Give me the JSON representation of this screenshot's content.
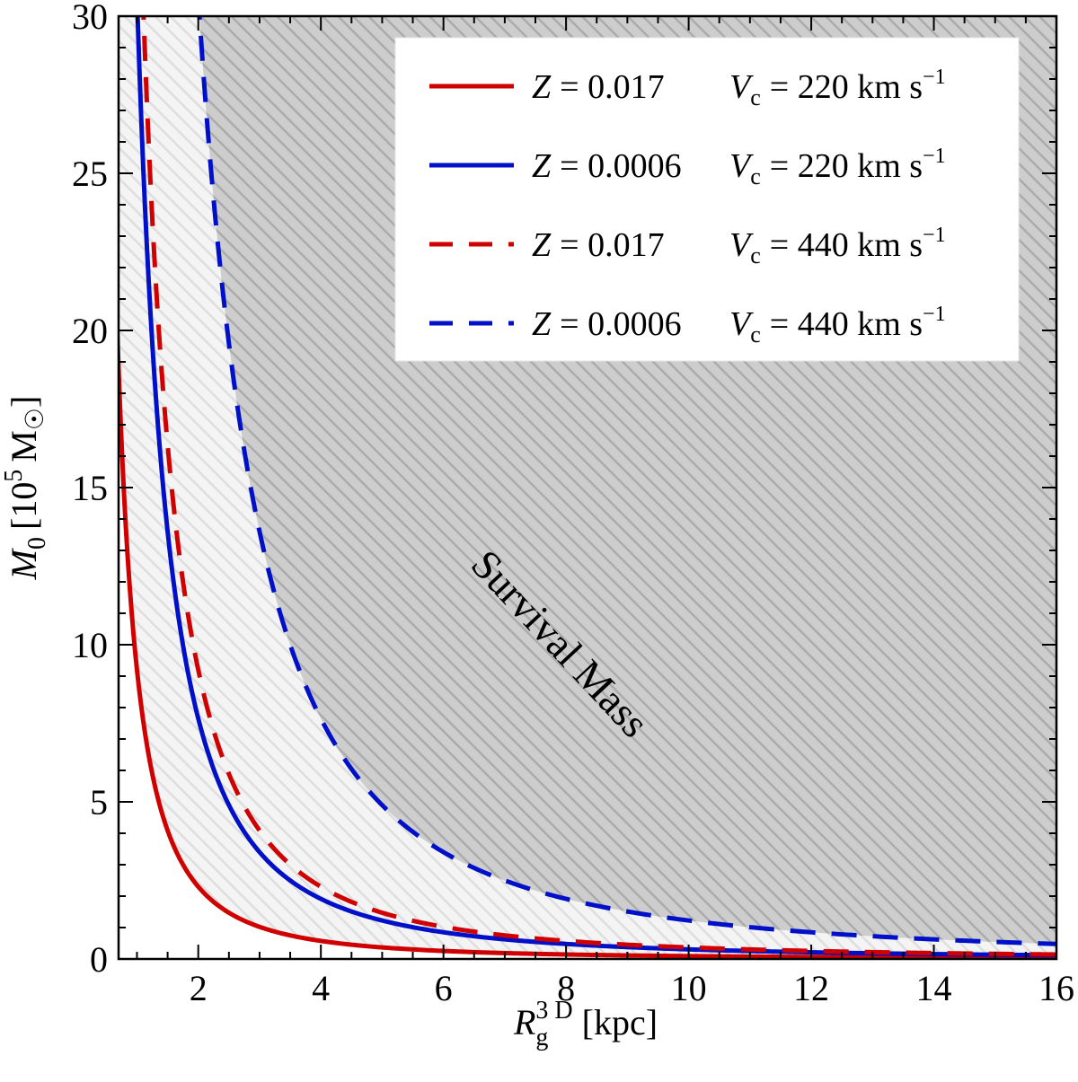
{
  "chart_data": {
    "type": "line",
    "xlabel": {
      "main": "R",
      "sub": "g",
      "sup": "3 D",
      "unit": "[kpc]"
    },
    "ylabel": {
      "main": "M",
      "sub": "0",
      "pre": "[10",
      "exp": "5",
      "unit": "M",
      "sun": "☉",
      "post": "]"
    },
    "xlim": [
      0.7,
      16
    ],
    "ylim": [
      0,
      30
    ],
    "xticks": [
      2,
      4,
      6,
      8,
      10,
      12,
      14,
      16
    ],
    "yticks": [
      0,
      5,
      10,
      15,
      20,
      25,
      30
    ],
    "xtick_labels": [
      "2",
      "4",
      "6",
      "8",
      "10",
      "12",
      "14",
      "16"
    ],
    "ytick_labels": [
      "0",
      "5",
      "10",
      "15",
      "20",
      "25",
      "30"
    ],
    "legend_position": "top-right",
    "annotation": {
      "text": "Survival Mass"
    },
    "series": [
      {
        "name": "Z = 0.017 Vc = 220 km s−1",
        "z_label": "Z",
        "z_eq": "= 0.017",
        "v_label": "V",
        "v_sub": "c",
        "v_eq": "= 220 km s",
        "v_exp": "−1",
        "color": "#d00000",
        "dash": "solid",
        "k": 9.2
      },
      {
        "name": "Z = 0.0006 Vc = 220 km s−1",
        "z_label": "Z",
        "z_eq": "= 0.0006",
        "v_label": "V",
        "v_sub": "c",
        "v_eq": "= 220 km s",
        "v_exp": "−1",
        "color": "#0010c8",
        "dash": "solid",
        "k": 30.6
      },
      {
        "name": "Z = 0.017 Vc = 440 km s−1",
        "z_label": "Z",
        "z_eq": "= 0.017",
        "v_label": "V",
        "v_sub": "c",
        "v_eq": "= 440 km s",
        "v_exp": "−1",
        "color": "#d00000",
        "dash": "dashed",
        "k": 36.8
      },
      {
        "name": "Z = 0.0006 Vc = 440 km s−1",
        "z_label": "Z",
        "z_eq": "= 0.0006",
        "v_label": "V",
        "v_sub": "c",
        "v_eq": "= 440 km s",
        "v_exp": "−1",
        "color": "#0010c8",
        "dash": "dashed",
        "k": 122.4
      }
    ],
    "curve_model": "M0 = k / (R^2)",
    "regions": {
      "light_fill": "#f2f2f2",
      "dark_fill": "#c8c8c8",
      "hatch_light": "#dcdcdc",
      "hatch_dark": "#a8a8a8"
    }
  }
}
